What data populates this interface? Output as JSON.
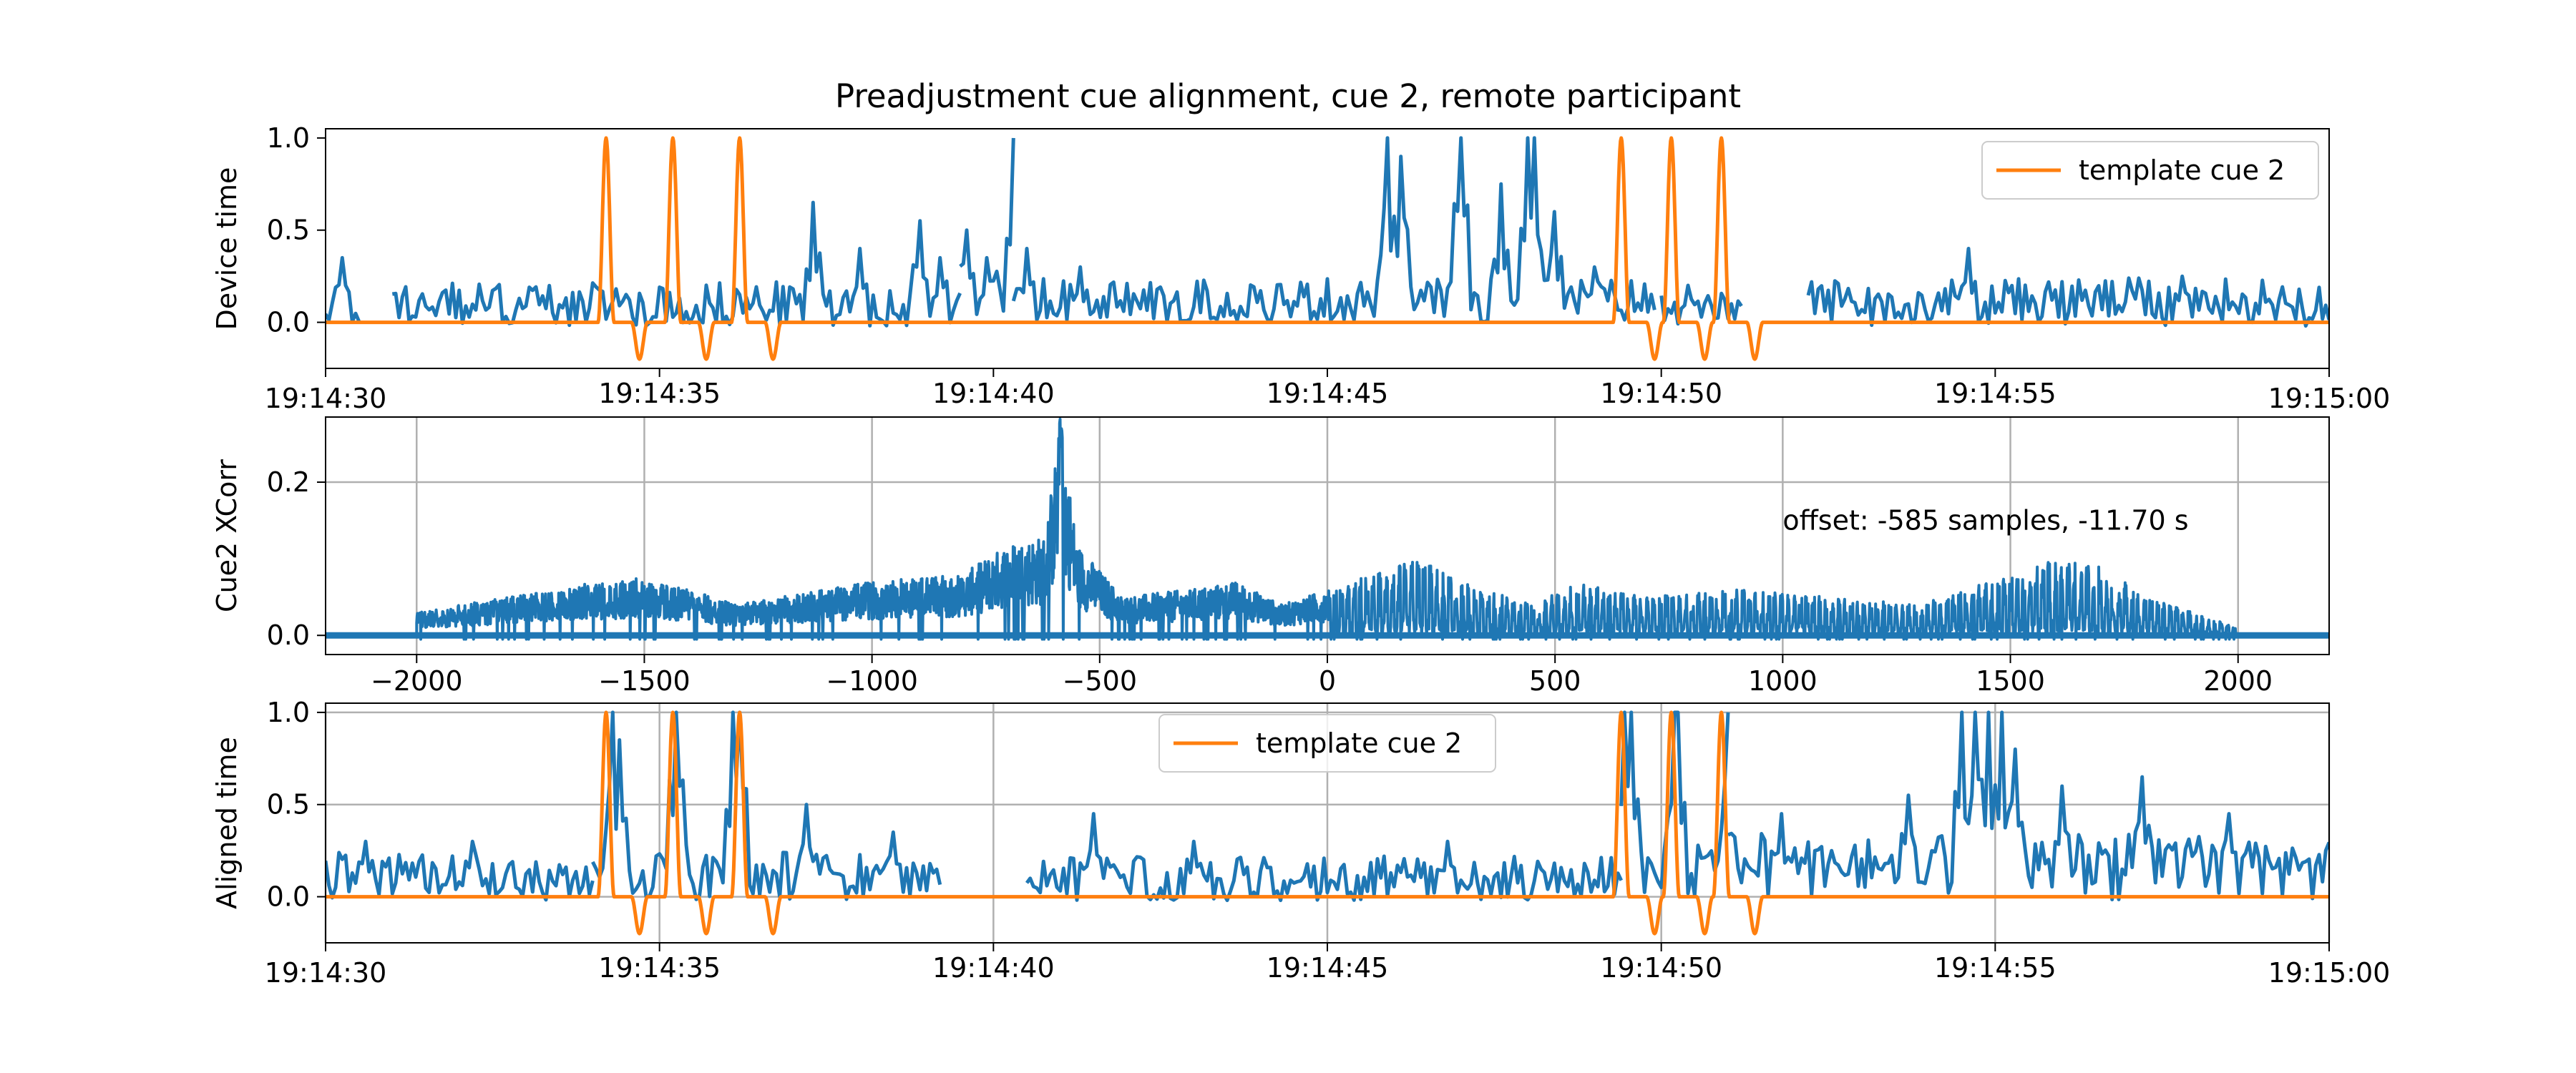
{
  "figure": {
    "title": "Preadjustment cue alignment, cue 2, remote participant"
  },
  "colors": {
    "signal": "#1f77b4",
    "template": "#ff7f0e",
    "grid": "#b0b0b0",
    "axes": "#000000"
  },
  "chart_data": [
    {
      "type": "line",
      "panel": "device",
      "title": "",
      "xlabel": "",
      "ylabel": "Device time",
      "xlim": [
        "19:14:30",
        "19:15:00"
      ],
      "ylim": [
        -0.25,
        1.05
      ],
      "grid": false,
      "legend_position": "top-right",
      "x_ticks": [
        "19:14:30",
        "19:14:35",
        "19:14:40",
        "19:14:45",
        "19:14:50",
        "19:14:55",
        "19:15:00"
      ],
      "y_ticks": [
        "0.0",
        "0.5",
        "1.0"
      ],
      "series": [
        {
          "color": "#1f77b4",
          "segments": [
            {
              "start": "19:14:30.0",
              "end": "19:14:30.5",
              "mean": 0.1,
              "amp": 0.12,
              "spikes": [
                [
                  "19:14:30.25",
                  0.35
                ]
              ]
            },
            {
              "start": "19:14:31.0",
              "end": "19:14:39.5",
              "mean": 0.1,
              "amp": 0.12,
              "spikes": [
                [
                  "19:14:37.3",
                  0.65
                ],
                [
                  "19:14:38.0",
                  0.4
                ],
                [
                  "19:14:38.9",
                  0.55
                ],
                [
                  "19:14:39.2",
                  0.35
                ]
              ]
            },
            {
              "start": "19:14:39.5",
              "end": "19:14:40.3",
              "mean": 0.15,
              "amp": 0.15,
              "spikes": [
                [
                  "19:14:39.6",
                  0.5
                ],
                [
                  "19:14:39.9",
                  0.35
                ],
                [
                  "19:14:40.3",
                  1.0
                ]
              ]
            },
            {
              "start": "19:14:40.3",
              "end": "19:14:49.9",
              "mean": 0.12,
              "amp": 0.12,
              "spikes": [
                [
                  "19:14:40.5",
                  0.4
                ],
                [
                  "19:14:41.3",
                  0.3
                ],
                [
                  "19:14:45.9",
                  1.0
                ],
                [
                  "19:14:46.1",
                  0.9
                ],
                [
                  "19:14:47.0",
                  1.0
                ],
                [
                  "19:14:47.6",
                  0.75
                ],
                [
                  "19:14:48.0",
                  1.0
                ],
                [
                  "19:14:48.1",
                  1.0
                ],
                [
                  "19:14:48.4",
                  0.6
                ],
                [
                  "19:14:49.0",
                  0.3
                ]
              ]
            },
            {
              "start": "19:14:50.0",
              "end": "19:14:51.2",
              "mean": 0.08,
              "amp": 0.08,
              "spikes": [
                [
                  "19:14:50.4",
                  0.2
                ]
              ]
            },
            {
              "start": "19:14:52.2",
              "end": "19:15:00.0",
              "mean": 0.12,
              "amp": 0.12,
              "spikes": [
                [
                  "19:14:54.6",
                  0.4
                ],
                [
                  "19:14:57.8",
                  0.25
                ]
              ]
            }
          ]
        },
        {
          "name": "template cue 2",
          "color": "#ff7f0e",
          "baseline": 0.0,
          "pulses": [
            "19:14:34.2",
            "19:14:35.2",
            "19:14:36.2",
            "19:14:49.4",
            "19:14:50.15",
            "19:14:50.9"
          ],
          "pulse_peak": 1.0,
          "trough": -0.2
        }
      ]
    },
    {
      "type": "line",
      "panel": "xcorr",
      "title": "",
      "xlabel": "",
      "ylabel": "Cue2 XCorr",
      "xlim": [
        -2200,
        2200
      ],
      "ylim": [
        -0.025,
        0.285
      ],
      "grid": true,
      "x_ticks": [
        "−2000",
        "−1500",
        "−1000",
        "−500",
        "0",
        "500",
        "1000",
        "1500",
        "2000"
      ],
      "y_ticks": [
        "0.0",
        "0.2"
      ],
      "annotation": "offset: -585 samples, -11.70 s",
      "series": [
        {
          "color": "#1f77b4",
          "lag_range": [
            -2000,
            2000
          ],
          "envelope": [
            [
              -2000,
              0.03
            ],
            [
              -1800,
              0.05
            ],
            [
              -1600,
              0.07
            ],
            [
              -1500,
              0.075
            ],
            [
              -1400,
              0.06
            ],
            [
              -1300,
              0.04
            ],
            [
              -1100,
              0.06
            ],
            [
              -950,
              0.075
            ],
            [
              -800,
              0.08
            ],
            [
              -700,
              0.12
            ],
            [
              -620,
              0.13
            ],
            [
              -585,
              0.285
            ],
            [
              -550,
              0.12
            ],
            [
              -450,
              0.05
            ],
            [
              -300,
              0.06
            ],
            [
              -200,
              0.07
            ],
            [
              -100,
              0.04
            ],
            [
              0,
              0.06
            ],
            [
              100,
              0.08
            ],
            [
              200,
              0.1
            ],
            [
              300,
              0.07
            ],
            [
              450,
              0.04
            ],
            [
              550,
              0.07
            ],
            [
              700,
              0.05
            ],
            [
              900,
              0.06
            ],
            [
              1100,
              0.05
            ],
            [
              1300,
              0.04
            ],
            [
              1500,
              0.08
            ],
            [
              1600,
              0.1
            ],
            [
              1700,
              0.09
            ],
            [
              1800,
              0.05
            ],
            [
              2000,
              0.01
            ]
          ],
          "peak": {
            "lag": -585,
            "value": 0.285
          }
        }
      ]
    },
    {
      "type": "line",
      "panel": "aligned",
      "title": "",
      "xlabel": "",
      "ylabel": "Aligned time",
      "xlim": [
        "19:14:30",
        "19:15:00"
      ],
      "ylim": [
        -0.25,
        1.05
      ],
      "grid": true,
      "legend_position": "top-center",
      "x_ticks": [
        "19:14:30",
        "19:14:35",
        "19:14:40",
        "19:14:45",
        "19:14:50",
        "19:14:55",
        "19:15:00"
      ],
      "y_ticks": [
        "0.0",
        "0.5",
        "1.0"
      ],
      "series": [
        {
          "color": "#1f77b4",
          "segments": [
            {
              "start": "19:14:30.0",
              "end": "19:14:34.0",
              "mean": 0.12,
              "amp": 0.12,
              "spikes": [
                [
                  "19:14:30.6",
                  0.3
                ],
                [
                  "19:14:32.2",
                  0.3
                ]
              ]
            },
            {
              "start": "19:14:34.0",
              "end": "19:14:39.2",
              "mean": 0.12,
              "amp": 0.12,
              "spikes": [
                [
                  "19:14:34.3",
                  1.0
                ],
                [
                  "19:14:34.4",
                  0.85
                ],
                [
                  "19:14:35.25",
                  1.0
                ],
                [
                  "19:14:35.3",
                  0.6
                ],
                [
                  "19:14:36.1",
                  1.0
                ],
                [
                  "19:14:36.2",
                  1.0
                ],
                [
                  "19:14:37.2",
                  0.5
                ],
                [
                  "19:14:38.5",
                  0.35
                ]
              ]
            },
            {
              "start": "19:14:40.5",
              "end": "19:14:49.4",
              "mean": 0.1,
              "amp": 0.12,
              "spikes": [
                [
                  "19:14:41.5",
                  0.45
                ],
                [
                  "19:14:43.0",
                  0.3
                ],
                [
                  "19:14:46.8",
                  0.3
                ]
              ]
            },
            {
              "start": "19:14:49.4",
              "end": "19:14:51.0",
              "mean": 0.15,
              "amp": 0.15,
              "spikes": [
                [
                  "19:14:49.45",
                  1.0
                ],
                [
                  "19:14:49.55",
                  1.0
                ],
                [
                  "19:14:50.2",
                  1.0
                ],
                [
                  "19:14:50.25",
                  1.0
                ],
                [
                  "19:14:51.0",
                  1.0
                ]
              ]
            },
            {
              "start": "19:14:51.0",
              "end": "19:15:00.0",
              "mean": 0.2,
              "amp": 0.15,
              "spikes": [
                [
                  "19:14:51.8",
                  0.45
                ],
                [
                  "19:14:53.7",
                  0.55
                ],
                [
                  "19:14:54.5",
                  1.0
                ],
                [
                  "19:14:54.7",
                  1.0
                ],
                [
                  "19:14:54.9",
                  1.0
                ],
                [
                  "19:14:55.1",
                  1.0
                ],
                [
                  "19:14:55.3",
                  0.8
                ],
                [
                  "19:14:56.0",
                  0.6
                ],
                [
                  "19:14:57.2",
                  0.65
                ],
                [
                  "19:14:58.5",
                  0.45
                ]
              ]
            }
          ]
        },
        {
          "name": "template cue 2",
          "color": "#ff7f0e",
          "baseline": 0.0,
          "pulses": [
            "19:14:34.2",
            "19:14:35.2",
            "19:14:36.2",
            "19:14:49.4",
            "19:14:50.15",
            "19:14:50.9"
          ],
          "pulse_peak": 1.0,
          "trough": -0.2
        }
      ]
    }
  ]
}
